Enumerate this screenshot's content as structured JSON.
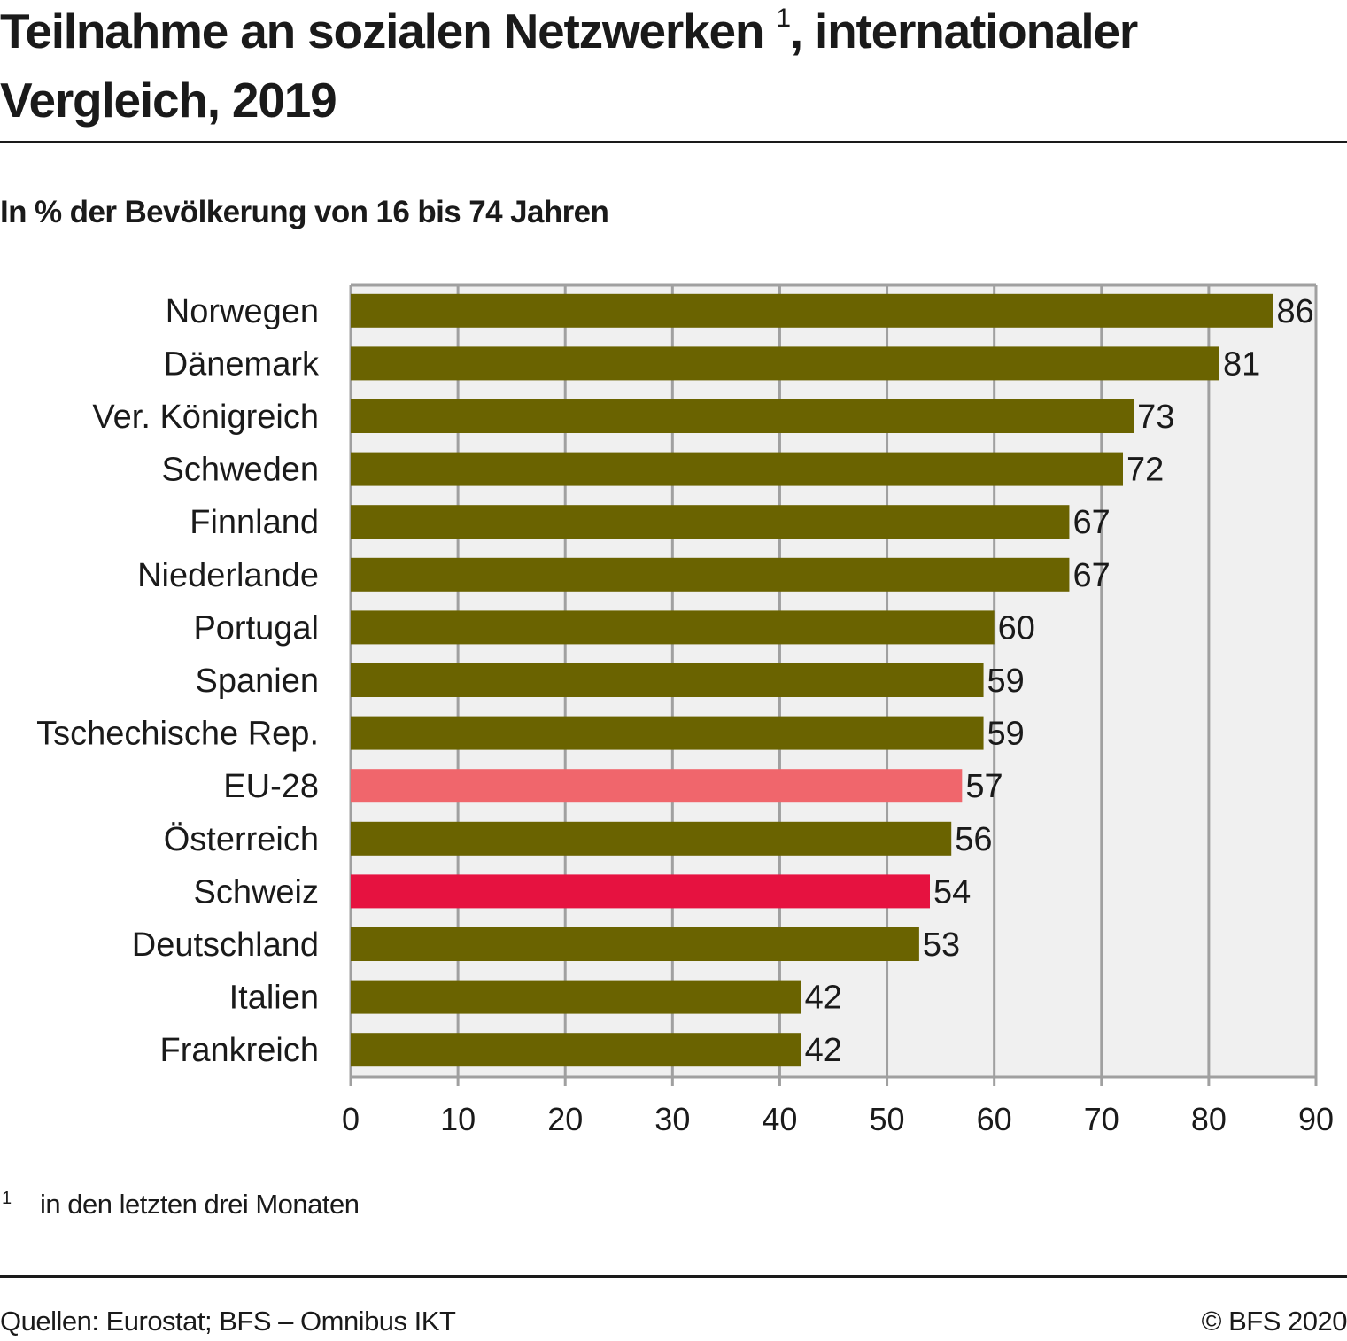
{
  "header": {
    "title_part1": "Teilnahme an sozialen Netzwerken",
    "title_sup": "1",
    "title_part2": ", internationaler",
    "title_line2": "Vergleich, 2019",
    "subtitle": "In % der Bevölkerung von 16 bis 74 Jahren"
  },
  "footer": {
    "footnote_mark": "1",
    "footnote": "in den letzten drei Monaten",
    "source": "Quellen: Eurostat; BFS – Omnibus IKT",
    "copyright": "© BFS 2020"
  },
  "colors": {
    "default_bar": "#6a6300",
    "eu_bar": "#f0666c",
    "ch_bar": "#e61240",
    "plot_background": "#f0f0f0",
    "grid": "#a0a0a0"
  },
  "chart_data": {
    "type": "bar",
    "orientation": "horizontal",
    "title": "Teilnahme an sozialen Netzwerken 1, internationaler Vergleich, 2019",
    "subtitle": "In % der Bevölkerung von 16 bis 74 Jahren",
    "xlabel": "",
    "ylabel": "",
    "xlim": [
      0,
      90
    ],
    "xticks": [
      0,
      10,
      20,
      30,
      40,
      50,
      60,
      70,
      80,
      90
    ],
    "grid": true,
    "categories": [
      "Norwegen",
      "Dänemark",
      "Ver. Königreich",
      "Schweden",
      "Finnland",
      "Niederlande",
      "Portugal",
      "Spanien",
      "Tschechische Rep.",
      "EU-28",
      "Österreich",
      "Schweiz",
      "Deutschland",
      "Italien",
      "Frankreich"
    ],
    "values": [
      86,
      81,
      73,
      72,
      67,
      67,
      60,
      59,
      59,
      57,
      56,
      54,
      53,
      42,
      42
    ],
    "highlight": {
      "EU-28": "eu_bar",
      "Schweiz": "ch_bar"
    },
    "data_labels": true
  }
}
